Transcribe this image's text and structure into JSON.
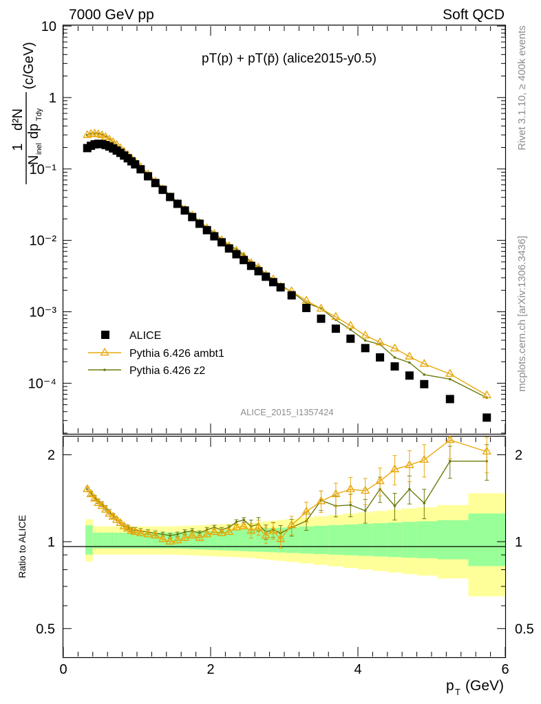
{
  "header": {
    "left": "7000 GeV pp",
    "right": "Soft QCD"
  },
  "plot_title": "pT(p) + pT(p̄) (alice2015-y0.5)",
  "watermark": "ALICE_2015_I1357424",
  "side_text": {
    "rivet": "Rivet 3.1.10, ≥ 400k events",
    "mcplots": "mcplots.cern.ch [arXiv:1306.3436]"
  },
  "y_axis_label": {
    "one": "1",
    "N": "N",
    "inel": "inel",
    "d2N": "d²N",
    "dpTdy": "dp",
    "Tdy": "Tdy",
    "units": "(c/GeV)"
  },
  "ratio_ylabel": "Ratio to ALICE",
  "x_axis_label": {
    "p": "p",
    "T": "T",
    "units": "(GeV)"
  },
  "colors": {
    "alice": "#000000",
    "ambt1": "#e8a80c",
    "z2": "#6b7a0c",
    "band_inner": "#99ff99",
    "band_outer": "#ffff99"
  },
  "chart_data": {
    "type": "scatter",
    "xlabel": "pT (GeV)",
    "ylabel": "1/N_inel d2N/dpT dy (c/GeV)",
    "xlim": [
      0,
      6
    ],
    "ylim": [
      2e-05,
      10
    ],
    "ratio_ylim": [
      0.4,
      2.3
    ],
    "x_ticks": [
      "0",
      "2",
      "4",
      "6"
    ],
    "y_ticks": [
      "10⁻⁴",
      "10⁻³",
      "10⁻²",
      "10⁻¹",
      "1",
      "10"
    ],
    "ratio_ticks": [
      "0.5",
      "1",
      "2"
    ],
    "legend": [
      "ALICE",
      "Pythia 6.426 ambt1",
      "Pythia 6.426 z2"
    ],
    "legend_position": "bottom-left",
    "x": [
      0.325,
      0.375,
      0.425,
      0.475,
      0.525,
      0.575,
      0.625,
      0.675,
      0.725,
      0.775,
      0.825,
      0.875,
      0.925,
      0.975,
      1.05,
      1.15,
      1.25,
      1.35,
      1.45,
      1.55,
      1.65,
      1.75,
      1.85,
      1.95,
      2.05,
      2.15,
      2.25,
      2.35,
      2.45,
      2.55,
      2.65,
      2.75,
      2.85,
      2.95,
      3.1,
      3.3,
      3.5,
      3.7,
      3.9,
      4.1,
      4.3,
      4.5,
      4.7,
      4.9,
      5.25,
      5.75
    ],
    "series": [
      {
        "name": "ALICE",
        "values": [
          0.196,
          0.211,
          0.221,
          0.225,
          0.223,
          0.216,
          0.206,
          0.194,
          0.181,
          0.168,
          0.154,
          0.141,
          0.128,
          0.116,
          0.099,
          0.079,
          0.0635,
          0.051,
          0.0405,
          0.0325,
          0.0262,
          0.0212,
          0.0171,
          0.0139,
          0.0114,
          0.0094,
          0.0077,
          0.0064,
          0.0053,
          0.0044,
          0.0037,
          0.0031,
          0.0026,
          0.0022,
          0.0017,
          0.00113,
          0.0008,
          0.00058,
          0.00042,
          0.00031,
          0.00023,
          0.000172,
          0.000128,
          9.7e-05,
          6e-05,
          3.3e-05
        ]
      },
      {
        "name": "Pythia 6.426 ambt1",
        "ratio": [
          1.52,
          1.46,
          1.41,
          1.36,
          1.33,
          1.29,
          1.25,
          1.22,
          1.19,
          1.16,
          1.13,
          1.11,
          1.09,
          1.08,
          1.07,
          1.06,
          1.05,
          1.02,
          1.0,
          1.01,
          1.03,
          1.05,
          1.03,
          1.06,
          1.08,
          1.07,
          1.08,
          1.12,
          1.13,
          1.09,
          1.12,
          1.05,
          1.09,
          1.02,
          1.14,
          1.27,
          1.38,
          1.46,
          1.52,
          1.5,
          1.62,
          1.78,
          1.84,
          1.92,
          2.25,
          2.05
        ]
      },
      {
        "name": "Pythia 6.426 z2",
        "ratio": [
          1.52,
          1.47,
          1.42,
          1.38,
          1.35,
          1.31,
          1.27,
          1.23,
          1.19,
          1.16,
          1.13,
          1.12,
          1.1,
          1.1,
          1.09,
          1.08,
          1.07,
          1.06,
          1.05,
          1.06,
          1.08,
          1.09,
          1.07,
          1.1,
          1.12,
          1.1,
          1.12,
          1.17,
          1.19,
          1.13,
          1.15,
          1.08,
          1.1,
          1.07,
          1.12,
          1.18,
          1.39,
          1.33,
          1.34,
          1.28,
          1.52,
          1.33,
          1.52,
          1.36,
          1.9,
          1.9
        ]
      }
    ]
  }
}
